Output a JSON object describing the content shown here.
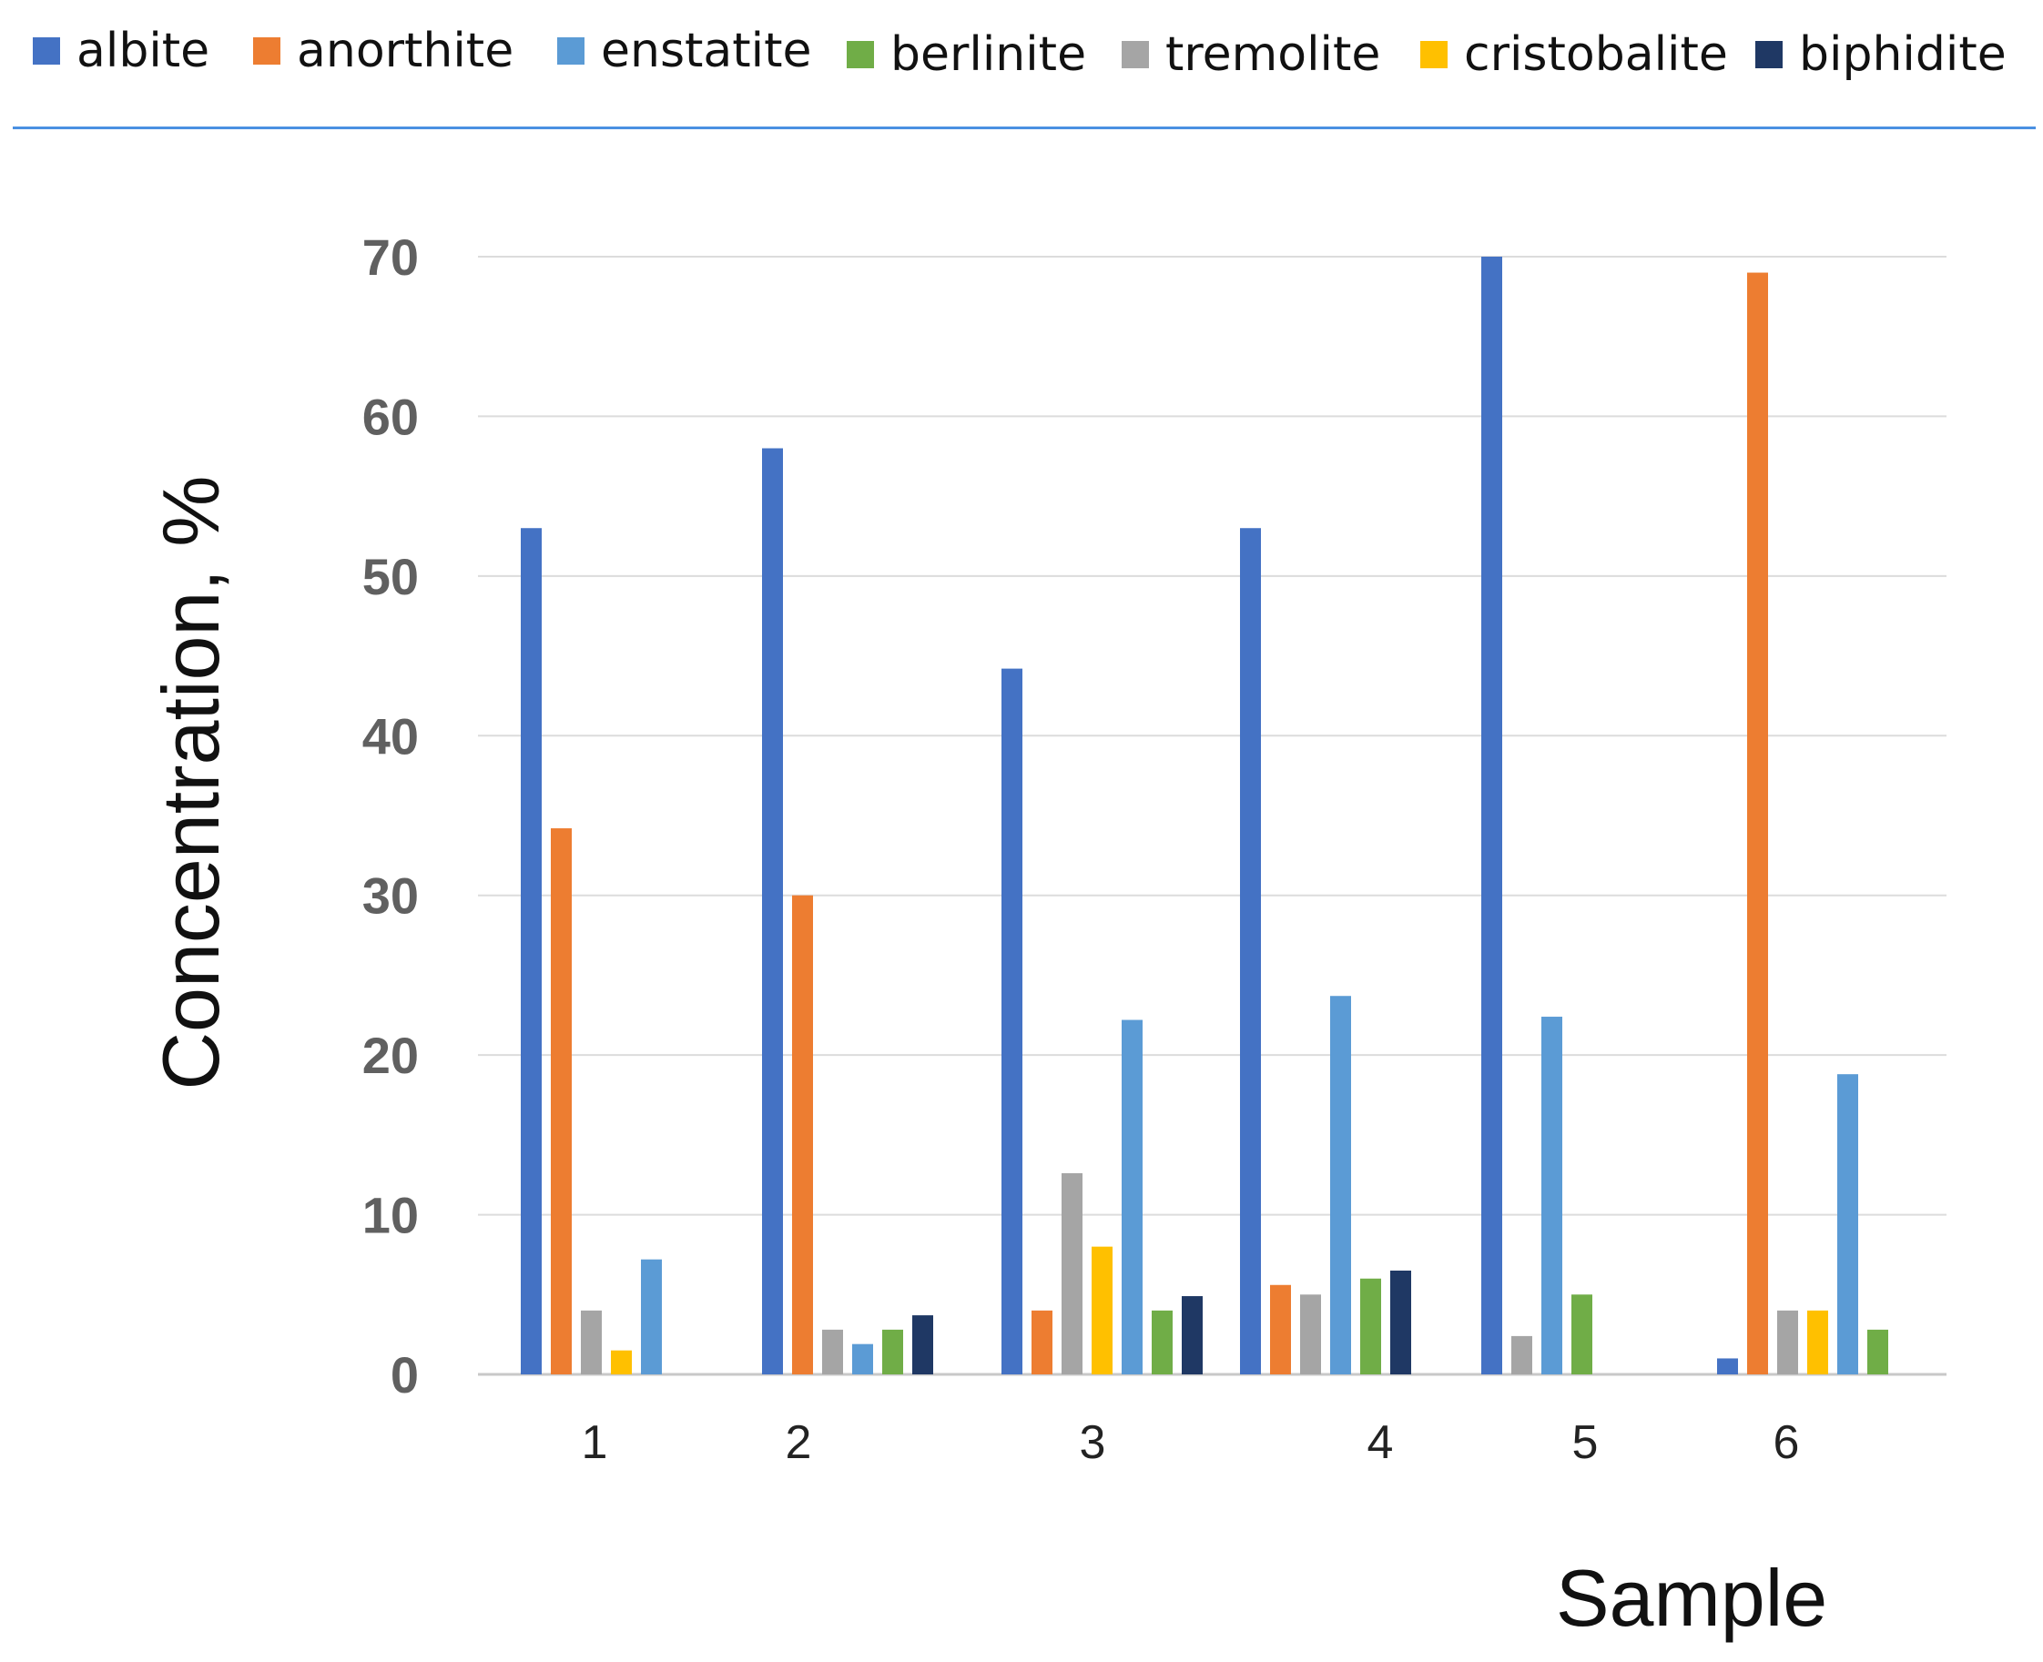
{
  "chart_data": {
    "type": "bar",
    "title": "",
    "xlabel": "Sample",
    "ylabel": "Concentration, %",
    "categories": [
      "1",
      "2",
      "3",
      "4",
      "5",
      "6"
    ],
    "ylim": [
      0,
      70
    ],
    "yticks": [
      0,
      10,
      20,
      30,
      40,
      50,
      60,
      70
    ],
    "grid": true,
    "legend_position": "top",
    "series": [
      {
        "name": "albite",
        "color": "#4472c4",
        "values": [
          53,
          58,
          44.2,
          53,
          70,
          1
        ]
      },
      {
        "name": "anorthite",
        "color": "#ed7d31",
        "values": [
          34.2,
          30,
          4,
          5.6,
          0,
          69
        ]
      },
      {
        "name": "tremolite",
        "color": "#a5a5a5",
        "values": [
          4,
          2.8,
          12.6,
          5,
          2.4,
          4
        ]
      },
      {
        "name": "cristobalite",
        "color": "#ffc000",
        "values": [
          1.5,
          0,
          8,
          0,
          0,
          4
        ]
      },
      {
        "name": "enstatite",
        "color": "#5b9bd5",
        "values": [
          7.2,
          1.9,
          22.2,
          23.7,
          22.4,
          18.8
        ]
      },
      {
        "name": "berlinite",
        "color": "#70ad47",
        "values": [
          0,
          2.8,
          4,
          6,
          5,
          2.8
        ]
      },
      {
        "name": "biphidite",
        "color": "#1f3864",
        "values": [
          0,
          3.7,
          4.9,
          6.5,
          0,
          0
        ]
      }
    ]
  },
  "legend": [
    {
      "label": "albite",
      "color": "#4472c4"
    },
    {
      "label": "anorthite",
      "color": "#ed7d31"
    },
    {
      "label": "enstatite",
      "color": "#5b9bd5"
    },
    {
      "label": "berlinite",
      "color": "#70ad47"
    },
    {
      "label": "tremolite",
      "color": "#a5a5a5"
    },
    {
      "label": "cristobalite",
      "color": "#ffc000"
    },
    {
      "label": "biphidite",
      "color": "#1f3864"
    }
  ]
}
